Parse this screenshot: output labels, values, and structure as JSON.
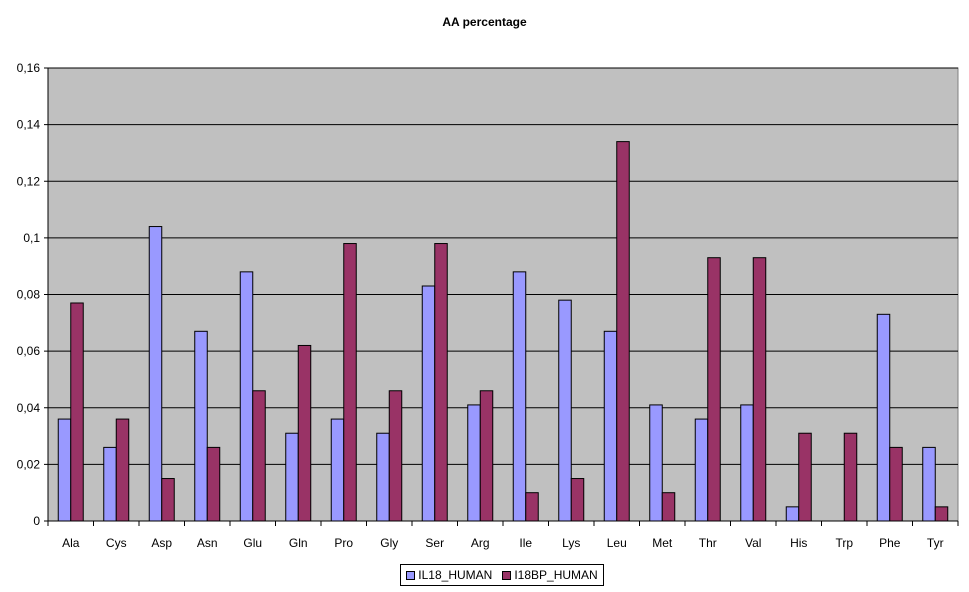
{
  "chart_data": {
    "type": "bar",
    "title": "AA percentage",
    "xlabel": "",
    "ylabel": "",
    "ylim": [
      0,
      0.16
    ],
    "yticks": [
      "0",
      "0,02",
      "0,04",
      "0,06",
      "0,08",
      "0,1",
      "0,12",
      "0,14",
      "0,16"
    ],
    "grid": true,
    "legend_position": "bottom",
    "categories": [
      "Ala",
      "Cys",
      "Asp",
      "Asn",
      "Glu",
      "Gln",
      "Pro",
      "Gly",
      "Ser",
      "Arg",
      "Ile",
      "Lys",
      "Leu",
      "Met",
      "Thr",
      "Val",
      "His",
      "Trp",
      "Phe",
      "Tyr"
    ],
    "series": [
      {
        "name": "IL18_HUMAN",
        "color": "#9999ff",
        "values": [
          0.036,
          0.026,
          0.104,
          0.067,
          0.088,
          0.031,
          0.036,
          0.031,
          0.083,
          0.041,
          0.088,
          0.078,
          0.067,
          0.041,
          0.036,
          0.041,
          0.005,
          0.0,
          0.073,
          0.026
        ]
      },
      {
        "name": "I18BP_HUMAN",
        "color": "#993366",
        "values": [
          0.077,
          0.036,
          0.015,
          0.026,
          0.046,
          0.062,
          0.098,
          0.046,
          0.098,
          0.046,
          0.01,
          0.015,
          0.134,
          0.01,
          0.093,
          0.093,
          0.031,
          0.031,
          0.026,
          0.005
        ]
      }
    ],
    "plot_background": "#c0c0c0"
  }
}
